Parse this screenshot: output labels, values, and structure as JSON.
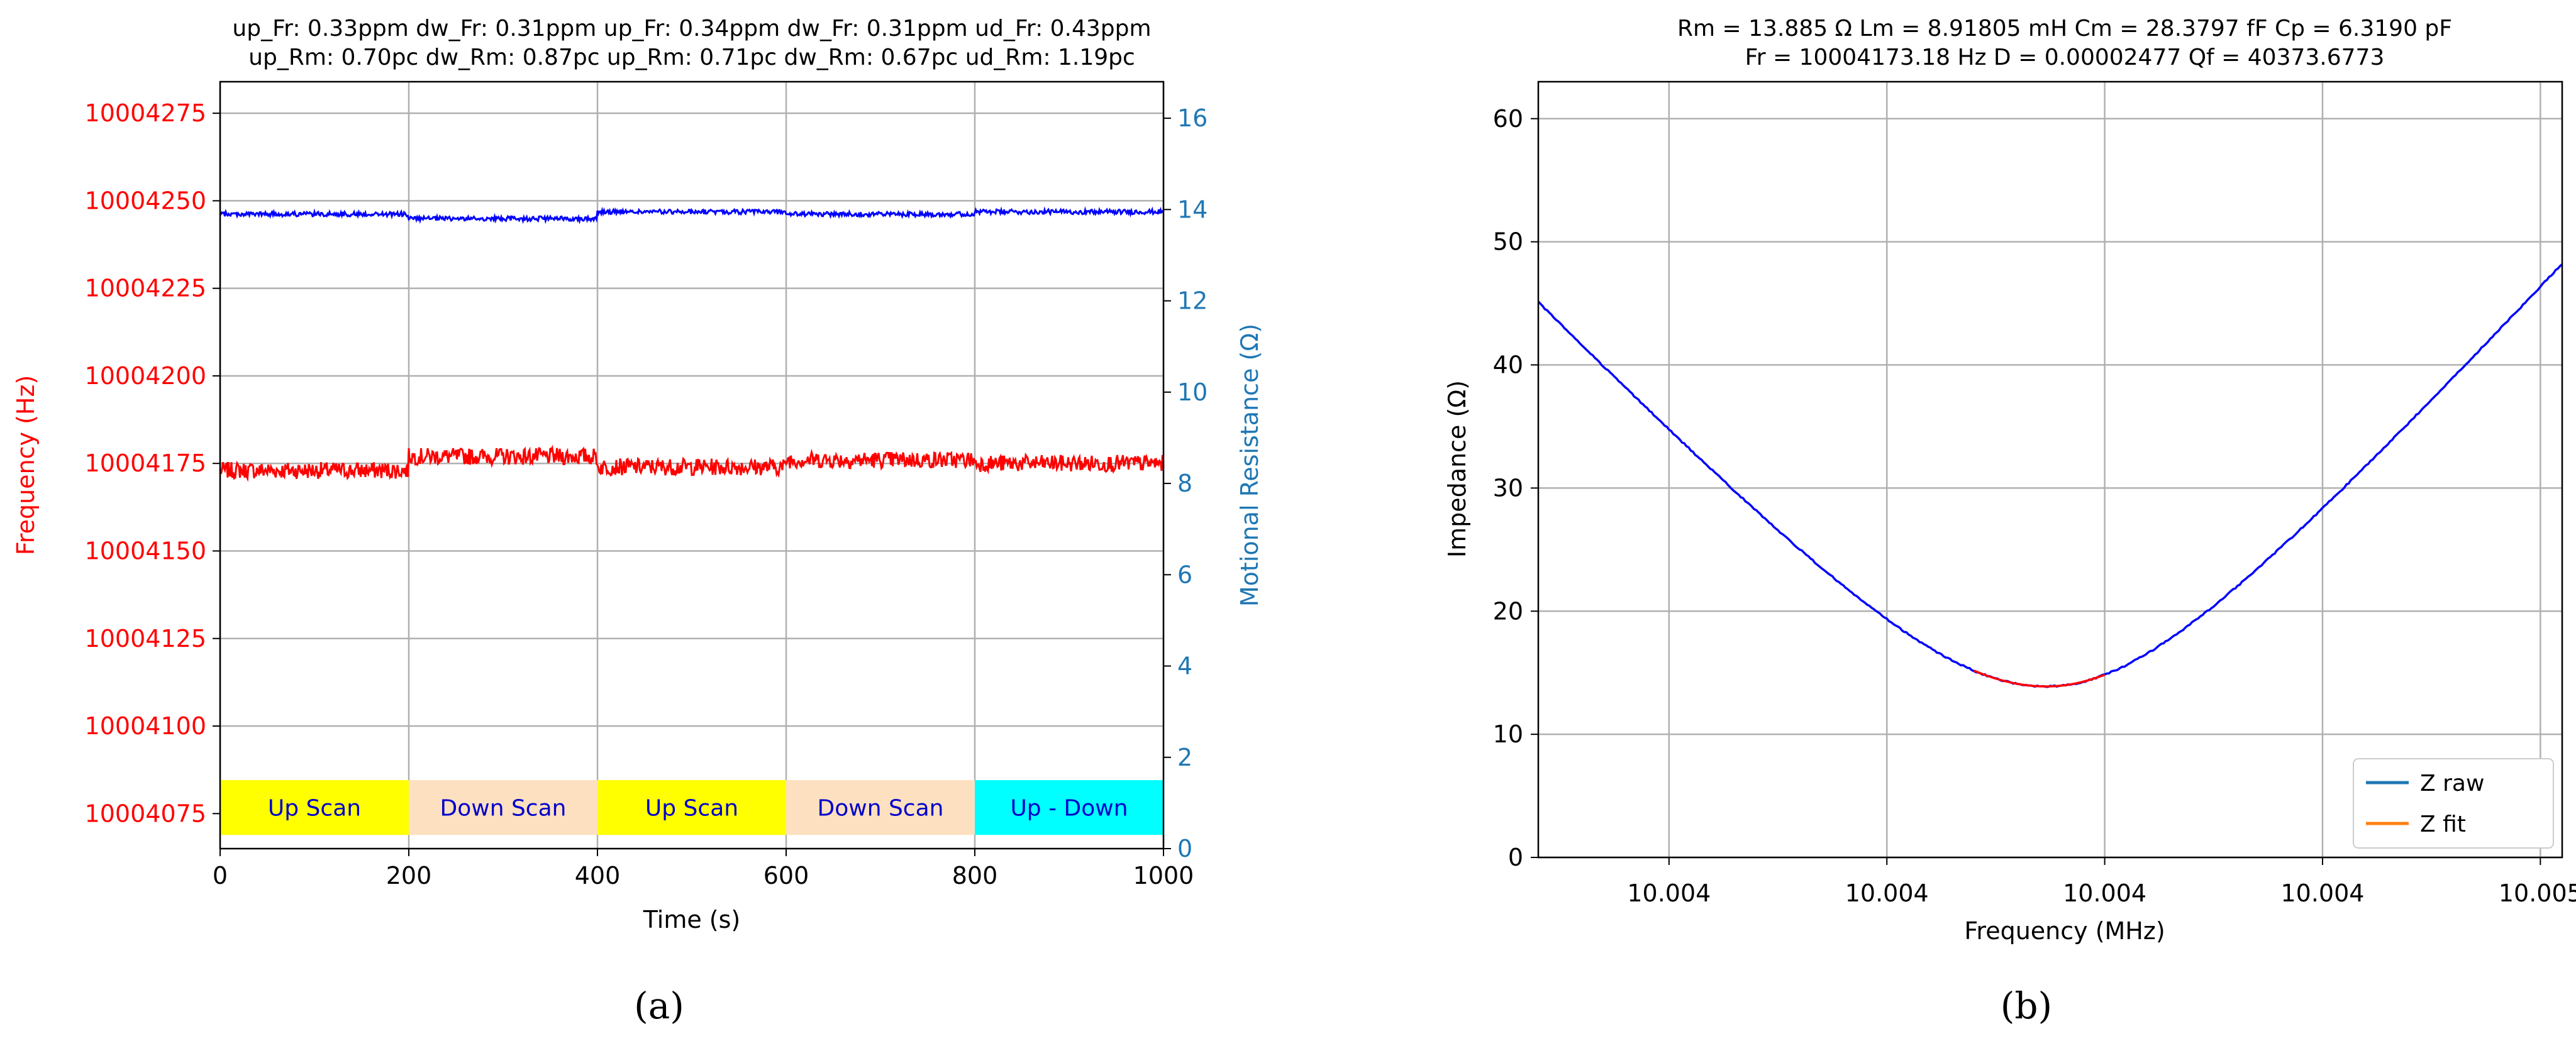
{
  "colors": {
    "freq": "#ff0000",
    "rm": "#0000ff",
    "rm_axis": "#1f77b4",
    "z_raw": "#0000ff",
    "z_fit": "#ff0000",
    "legend_raw": "#1f77b4",
    "legend_fit": "#ff7f0e",
    "grid": "#b0b0b0",
    "band_label": "#0000cc"
  },
  "panel_labels": [
    "(a)",
    "(b)"
  ],
  "chart_data": [
    {
      "type": "line",
      "title_lines": [
        "up_Fr: 0.33ppm  dw_Fr: 0.31ppm  up_Fr: 0.34ppm  dw_Fr: 0.31ppm  ud_Fr: 0.43ppm",
        "up_Rm: 0.70pc  dw_Rm: 0.87pc  up_Rm: 0.71pc  dw_Rm: 0.67pc  ud_Rm: 1.19pc"
      ],
      "xlabel": "Time (s)",
      "ylabel_left": "Frequency (Hz)",
      "ylabel_right": "Motional Resistance (Ω)",
      "xlim": [
        0,
        1000
      ],
      "ylim_left": [
        10004065,
        10004284
      ],
      "ylim_right": [
        0,
        16.8
      ],
      "xticks": [
        0,
        200,
        400,
        600,
        800,
        1000
      ],
      "yticks_left": [
        10004075,
        10004100,
        10004125,
        10004150,
        10004175,
        10004200,
        10004225,
        10004250,
        10004275
      ],
      "yticks_right": [
        0,
        2,
        4,
        6,
        8,
        10,
        12,
        14,
        16
      ],
      "grid": true,
      "bands": [
        {
          "label": "Up Scan",
          "x0": 0,
          "x1": 200,
          "color": "#ffff00"
        },
        {
          "label": "Down Scan",
          "x0": 200,
          "x1": 400,
          "color": "#fde0c0"
        },
        {
          "label": "Up Scan",
          "x0": 400,
          "x1": 600,
          "color": "#ffff00"
        },
        {
          "label": "Down Scan",
          "x0": 600,
          "x1": 800,
          "color": "#fde0c0"
        },
        {
          "label": "Up - Down",
          "x0": 800,
          "x1": 1000,
          "color": "#00ffff"
        }
      ],
      "band_ylim_right": [
        0.3,
        1.5
      ],
      "series": [
        {
          "name": "Frequency",
          "axis": "left",
          "segment_levels": [
            10004173,
            10004177,
            10004174,
            10004176,
            10004175
          ],
          "noise": 2.4
        },
        {
          "name": "Motional Resistance",
          "axis": "right",
          "segment_levels": [
            13.9,
            13.8,
            13.95,
            13.9,
            13.95
          ],
          "noise": 0.05
        }
      ]
    },
    {
      "type": "line",
      "title_lines": [
        "Rm = 13.885 Ω    Lm = 8.91805 mH    Cm = 28.3797 fF    Cp = 6.3190 pF",
        "Fr = 10004173.18 Hz    D = 0.00002477    Qf = 40373.6773"
      ],
      "xlabel": "Frequency (MHz)",
      "ylabel": "Impedance (Ω)",
      "xlim": [
        10003940,
        10004410
      ],
      "ylim": [
        0,
        63
      ],
      "xticks": [
        10004000,
        10004100,
        10004200,
        10004300,
        10004400
      ],
      "xtick_labels": [
        "10.004",
        "10.004",
        "10.004",
        "10.004",
        "10.005"
      ],
      "yticks": [
        0,
        10,
        20,
        30,
        40,
        50,
        60
      ],
      "grid": true,
      "legend": {
        "position": "bottom-right",
        "entries": [
          "Z raw",
          "Z fit"
        ]
      },
      "resonance_hz": 10004173.18,
      "rm_ohm": 13.885,
      "curve_slope_ohm_per_hz": [
        0.184,
        0.195
      ],
      "fit_window_hz": [
        10004140,
        10004200
      ],
      "series": [
        {
          "name": "Z raw"
        },
        {
          "name": "Z fit"
        }
      ]
    }
  ]
}
